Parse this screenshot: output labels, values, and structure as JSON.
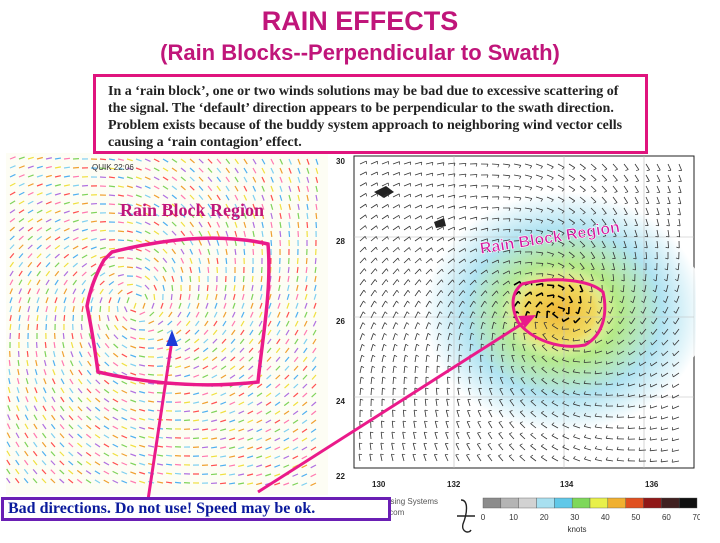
{
  "title": "RAIN EFFECTS",
  "subtitle": "(Rain Blocks--Perpendicular to Swath)",
  "callout": "In a ‘rain block’, one or two winds solutions may be bad due to excessive scattering of the signal. The ‘default’ direction appears to be perpendicular to the swath direction. Problem exists because of the buddy system approach to neighboring wind vector cells causing  a ‘rain contagion’ effect.",
  "left_panel": {
    "caption": "QUIK  22:06",
    "label": "Rain Block Region"
  },
  "right_panel": {
    "label": "Rain Block Region",
    "y_ticks": [
      "30",
      "28",
      "26",
      "24",
      "22"
    ],
    "x_ticks": [
      "130",
      "132",
      "134",
      "136"
    ]
  },
  "legend": {
    "ticks": [
      "0",
      "10",
      "20",
      "30",
      "40",
      "50",
      "60",
      "70"
    ],
    "unit": "knots",
    "colors": [
      "#8c8c8c",
      "#b4b4b4",
      "#d2d2d2",
      "#a8e0f0",
      "#60c8e8",
      "#7ed85a",
      "#e8f04a",
      "#f0b030",
      "#e05020",
      "#901818",
      "#402020",
      "#101010"
    ]
  },
  "source": {
    "name": "Remote Sensing Systems",
    "url": "www.remss.com"
  },
  "bottom_note": "Bad directions. Do not use! Speed may be ok.",
  "colors": {
    "accent": "#c0157a",
    "outline": "#e0147e",
    "note_text": "#0a1a9c",
    "note_border": "#6a1fb4"
  }
}
